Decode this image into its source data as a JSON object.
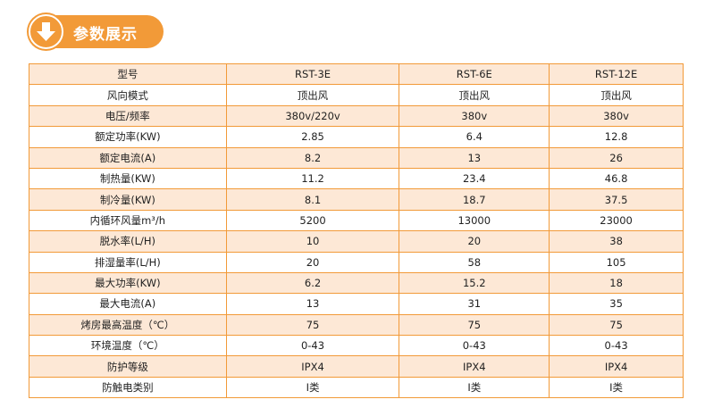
{
  "banner": {
    "title": "参数展示",
    "icon": "arrow-down-circle-icon",
    "color": "#f29a38"
  },
  "table": {
    "header": [
      "型号",
      "RST-3E",
      "RST-6E",
      "RST-12E"
    ],
    "rows": [
      [
        "风向模式",
        "顶出风",
        "顶出风",
        "顶出风"
      ],
      [
        "电压/频率",
        "380v/220v",
        "380v",
        "380v"
      ],
      [
        "额定功率(KW)",
        "2.85",
        "6.4",
        "12.8"
      ],
      [
        "额定电流(A)",
        "8.2",
        "13",
        "26"
      ],
      [
        "制热量(KW)",
        "11.2",
        "23.4",
        "46.8"
      ],
      [
        "制冷量(KW)",
        "8.1",
        "18.7",
        "37.5"
      ],
      [
        "内循环风量m³/h",
        "5200",
        "13000",
        "23000"
      ],
      [
        "脱水率(L/H)",
        "10",
        "20",
        "38"
      ],
      [
        "排湿量率(L/H)",
        "20",
        "58",
        "105"
      ],
      [
        "最大功率(KW)",
        "6.2",
        "15.2",
        "18"
      ],
      [
        "最大电流(A)",
        "13",
        "31",
        "35"
      ],
      [
        "烤房最高温度（℃）",
        "75",
        "75",
        "75"
      ],
      [
        "环境温度（℃）",
        "0-43",
        "0-43",
        "0-43"
      ],
      [
        "防护等级",
        "IPX4",
        "IPX4",
        "IPX4"
      ],
      [
        "防触电类别",
        "I类",
        "I类",
        "I类"
      ]
    ]
  }
}
